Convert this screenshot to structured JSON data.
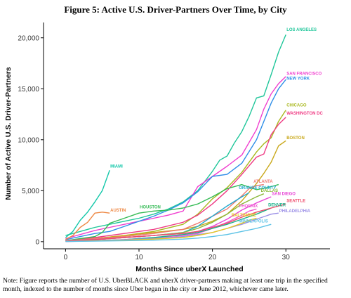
{
  "figure": {
    "title": "Figure 5: Active U.S. Driver-Partners Over Time, by City",
    "note": "Note: Figure reports the number of U.S. UberBLACK and uberX driver-partners making at least one trip in the specified month, indexed to the number of months since Uber began in the city or June 2012, whichever came later."
  },
  "chart_data": {
    "type": "line",
    "title": "Figure 5: Active U.S. Driver-Partners Over Time, by City",
    "xlabel": "Months Since uberX Launched",
    "ylabel": "Number of Active U.S. Driver-Partners",
    "xlim": [
      -3,
      36
    ],
    "ylim": [
      -700,
      21500
    ],
    "x_ticks": [
      0,
      10,
      20,
      30
    ],
    "y_ticks": [
      0,
      5000,
      10000,
      15000,
      20000
    ],
    "y_tick_labels": [
      "0",
      "5,000",
      "10,000",
      "15,000",
      "20,000"
    ],
    "grid": false,
    "series": [
      {
        "name": "LOS ANGELES",
        "color": "#1fc69a",
        "label_at": [
          30.0,
          20600
        ],
        "points": [
          [
            0,
            600
          ],
          [
            2,
            1000
          ],
          [
            4,
            1400
          ],
          [
            6,
            1700
          ],
          [
            8,
            2000
          ],
          [
            10,
            2300
          ],
          [
            12,
            2700
          ],
          [
            14,
            3200
          ],
          [
            16,
            3900
          ],
          [
            18,
            5000
          ],
          [
            20,
            6900
          ],
          [
            21,
            8000
          ],
          [
            22,
            8400
          ],
          [
            23,
            9700
          ],
          [
            24,
            10800
          ],
          [
            25,
            12300
          ],
          [
            26,
            14100
          ],
          [
            27,
            14300
          ],
          [
            28,
            16400
          ],
          [
            29,
            18600
          ],
          [
            30,
            20300
          ]
        ]
      },
      {
        "name": "SAN FRANCISCO",
        "color": "#f03ecf",
        "label_at": [
          30.0,
          16300
        ],
        "points": [
          [
            0,
            300
          ],
          [
            2,
            700
          ],
          [
            4,
            1100
          ],
          [
            6,
            1400
          ],
          [
            8,
            1700
          ],
          [
            10,
            2000
          ],
          [
            12,
            2300
          ],
          [
            14,
            2600
          ],
          [
            16,
            3000
          ],
          [
            18,
            5400
          ],
          [
            20,
            6400
          ],
          [
            22,
            7400
          ],
          [
            24,
            8500
          ],
          [
            26,
            11000
          ],
          [
            27,
            13000
          ],
          [
            28,
            14500
          ],
          [
            29,
            15500
          ],
          [
            30,
            16200
          ]
        ]
      },
      {
        "name": "NEW YORK",
        "color": "#2f8ee8",
        "label_at": [
          30.0,
          15800
        ],
        "points": [
          [
            0,
            200
          ],
          [
            2,
            500
          ],
          [
            4,
            800
          ],
          [
            6,
            1000
          ],
          [
            8,
            1500
          ],
          [
            10,
            2000
          ],
          [
            12,
            2500
          ],
          [
            14,
            3100
          ],
          [
            16,
            3800
          ],
          [
            18,
            4900
          ],
          [
            20,
            6400
          ],
          [
            22,
            6600
          ],
          [
            24,
            7700
          ],
          [
            26,
            10000
          ],
          [
            28,
            13600
          ],
          [
            29,
            15000
          ],
          [
            30,
            15900
          ]
        ]
      },
      {
        "name": "CHICAGO",
        "color": "#a9b81e",
        "label_at": [
          30.0,
          13200
        ],
        "points": [
          [
            0,
            100
          ],
          [
            4,
            300
          ],
          [
            8,
            600
          ],
          [
            12,
            1000
          ],
          [
            16,
            1700
          ],
          [
            18,
            2700
          ],
          [
            20,
            4200
          ],
          [
            22,
            5300
          ],
          [
            24,
            6800
          ],
          [
            26,
            8800
          ],
          [
            27,
            9600
          ],
          [
            28,
            10200
          ],
          [
            29,
            11800
          ],
          [
            30,
            12900
          ]
        ]
      },
      {
        "name": "WASHINGTON DC",
        "color": "#ef3a83",
        "label_at": [
          30.0,
          12400
        ],
        "points": [
          [
            0,
            100
          ],
          [
            4,
            400
          ],
          [
            8,
            800
          ],
          [
            12,
            1200
          ],
          [
            16,
            1900
          ],
          [
            18,
            2600
          ],
          [
            20,
            3700
          ],
          [
            22,
            5000
          ],
          [
            24,
            6600
          ],
          [
            26,
            8300
          ],
          [
            27,
            8600
          ],
          [
            28,
            10500
          ],
          [
            29,
            11500
          ],
          [
            30,
            12200
          ]
        ]
      },
      {
        "name": "BOSTON",
        "color": "#c9a81a",
        "label_at": [
          30.0,
          10000
        ],
        "points": [
          [
            0,
            100
          ],
          [
            4,
            300
          ],
          [
            8,
            600
          ],
          [
            12,
            900
          ],
          [
            16,
            1200
          ],
          [
            18,
            1500
          ],
          [
            20,
            2000
          ],
          [
            22,
            2700
          ],
          [
            24,
            4000
          ],
          [
            26,
            5700
          ],
          [
            27,
            6700
          ],
          [
            28,
            7800
          ],
          [
            29,
            9400
          ],
          [
            30,
            9900
          ]
        ]
      },
      {
        "name": "MIAMI",
        "color": "#12c7a9",
        "label_at": [
          6.0,
          7200
        ],
        "points": [
          [
            0,
            400
          ],
          [
            1,
            1000
          ],
          [
            2,
            2100
          ],
          [
            3,
            2900
          ],
          [
            4,
            3900
          ],
          [
            5,
            5000
          ],
          [
            6,
            7000
          ]
        ]
      },
      {
        "name": "AUSTIN",
        "color": "#ee8844",
        "label_at": [
          6.0,
          2900
        ],
        "points": [
          [
            0,
            200
          ],
          [
            1,
            600
          ],
          [
            2,
            1400
          ],
          [
            3,
            1900
          ],
          [
            4,
            2800
          ],
          [
            5,
            2900
          ],
          [
            6,
            2800
          ]
        ]
      },
      {
        "name": "HOUSTON",
        "color": "#35bb55",
        "label_at": [
          10.0,
          3200
        ],
        "points": [
          [
            0,
            100
          ],
          [
            2,
            300
          ],
          [
            4,
            500
          ],
          [
            5,
            900
          ],
          [
            6,
            1800
          ],
          [
            8,
            2300
          ],
          [
            10,
            2800
          ],
          [
            12,
            3000
          ],
          [
            14,
            3100
          ],
          [
            16,
            3300
          ],
          [
            18,
            3700
          ],
          [
            20,
            4400
          ],
          [
            22,
            5200
          ],
          [
            24,
            5600
          ],
          [
            26,
            5100
          ],
          [
            28,
            5400
          ],
          [
            29,
            5600
          ]
        ]
      },
      {
        "name": "ATLANTA",
        "color": "#ef7a72",
        "label_at": [
          25.5,
          5700
        ],
        "points": [
          [
            0,
            100
          ],
          [
            4,
            300
          ],
          [
            8,
            500
          ],
          [
            12,
            800
          ],
          [
            16,
            1200
          ],
          [
            18,
            1800
          ],
          [
            20,
            2500
          ],
          [
            22,
            3200
          ],
          [
            24,
            4500
          ],
          [
            25,
            5200
          ],
          [
            26,
            5500
          ],
          [
            27,
            5600
          ]
        ]
      },
      {
        "name": "ORANGE COUNTY",
        "color": "#1fa8ce",
        "label_at": [
          23.5,
          5100
        ],
        "points": [
          [
            0,
            100
          ],
          [
            4,
            200
          ],
          [
            8,
            400
          ],
          [
            12,
            600
          ],
          [
            16,
            900
          ],
          [
            18,
            1500
          ],
          [
            20,
            2500
          ],
          [
            22,
            3500
          ],
          [
            24,
            4400
          ],
          [
            25,
            4800
          ]
        ]
      },
      {
        "name": "DALLAS",
        "color": "#8ab83a",
        "label_at": [
          26.5,
          4800
        ],
        "points": [
          [
            0,
            100
          ],
          [
            4,
            200
          ],
          [
            8,
            400
          ],
          [
            12,
            600
          ],
          [
            16,
            900
          ],
          [
            18,
            1300
          ],
          [
            20,
            1900
          ],
          [
            22,
            2700
          ],
          [
            24,
            3700
          ],
          [
            26,
            4400
          ],
          [
            27,
            4700
          ]
        ]
      },
      {
        "name": "SAN DIEGO",
        "color": "#e845d6",
        "label_at": [
          28.0,
          4500
        ],
        "points": [
          [
            0,
            100
          ],
          [
            4,
            200
          ],
          [
            8,
            400
          ],
          [
            12,
            600
          ],
          [
            16,
            800
          ],
          [
            18,
            1000
          ],
          [
            20,
            1500
          ],
          [
            22,
            2200
          ],
          [
            24,
            3100
          ],
          [
            26,
            3800
          ],
          [
            28,
            4400
          ]
        ]
      },
      {
        "name": "PHOENIX",
        "color": "#f05ad2",
        "label_at": [
          23.5,
          3300
        ],
        "points": [
          [
            0,
            0
          ],
          [
            4,
            100
          ],
          [
            8,
            200
          ],
          [
            12,
            400
          ],
          [
            16,
            600
          ],
          [
            18,
            800
          ],
          [
            20,
            1300
          ],
          [
            22,
            1900
          ],
          [
            24,
            2600
          ],
          [
            25,
            3000
          ],
          [
            26,
            3200
          ]
        ]
      },
      {
        "name": "DENVER",
        "color": "#1bb28a",
        "label_at": [
          27.5,
          3400
        ],
        "points": [
          [
            0,
            50
          ],
          [
            4,
            100
          ],
          [
            8,
            200
          ],
          [
            12,
            400
          ],
          [
            16,
            700
          ],
          [
            18,
            900
          ],
          [
            20,
            1300
          ],
          [
            22,
            1700
          ],
          [
            24,
            2200
          ],
          [
            26,
            2700
          ],
          [
            28,
            3300
          ]
        ]
      },
      {
        "name": "SEATTLE",
        "color": "#ef4a6a",
        "label_at": [
          30.0,
          3800
        ],
        "points": [
          [
            0,
            50
          ],
          [
            4,
            200
          ],
          [
            8,
            400
          ],
          [
            12,
            600
          ],
          [
            16,
            800
          ],
          [
            18,
            1000
          ],
          [
            20,
            1400
          ],
          [
            22,
            1800
          ],
          [
            24,
            2400
          ],
          [
            26,
            2900
          ],
          [
            28,
            3300
          ],
          [
            30,
            3700
          ]
        ]
      },
      {
        "name": "PHILADELPHIA",
        "color": "#9a8ee6",
        "label_at": [
          29.0,
          2800
        ],
        "points": [
          [
            0,
            30
          ],
          [
            4,
            100
          ],
          [
            8,
            200
          ],
          [
            12,
            300
          ],
          [
            16,
            500
          ],
          [
            18,
            700
          ],
          [
            20,
            900
          ],
          [
            22,
            1300
          ],
          [
            24,
            1700
          ],
          [
            26,
            2200
          ],
          [
            28,
            2700
          ],
          [
            29,
            2800
          ]
        ]
      },
      {
        "name": "BALTIMORE",
        "color": "#e7c820",
        "label_at": [
          22.5,
          2400
        ],
        "points": [
          [
            0,
            30
          ],
          [
            4,
            80
          ],
          [
            8,
            150
          ],
          [
            12,
            250
          ],
          [
            16,
            400
          ],
          [
            18,
            600
          ],
          [
            20,
            900
          ],
          [
            22,
            1300
          ],
          [
            24,
            1800
          ],
          [
            25,
            2100
          ],
          [
            26,
            2300
          ]
        ]
      },
      {
        "name": "MINNEAPOLIS",
        "color": "#5bc2e6",
        "label_at": [
          23.5,
          1800
        ],
        "points": [
          [
            0,
            20
          ],
          [
            4,
            50
          ],
          [
            8,
            100
          ],
          [
            12,
            150
          ],
          [
            16,
            250
          ],
          [
            18,
            350
          ],
          [
            20,
            500
          ],
          [
            22,
            700
          ],
          [
            24,
            1000
          ],
          [
            26,
            1300
          ],
          [
            28,
            1700
          ]
        ]
      }
    ]
  }
}
